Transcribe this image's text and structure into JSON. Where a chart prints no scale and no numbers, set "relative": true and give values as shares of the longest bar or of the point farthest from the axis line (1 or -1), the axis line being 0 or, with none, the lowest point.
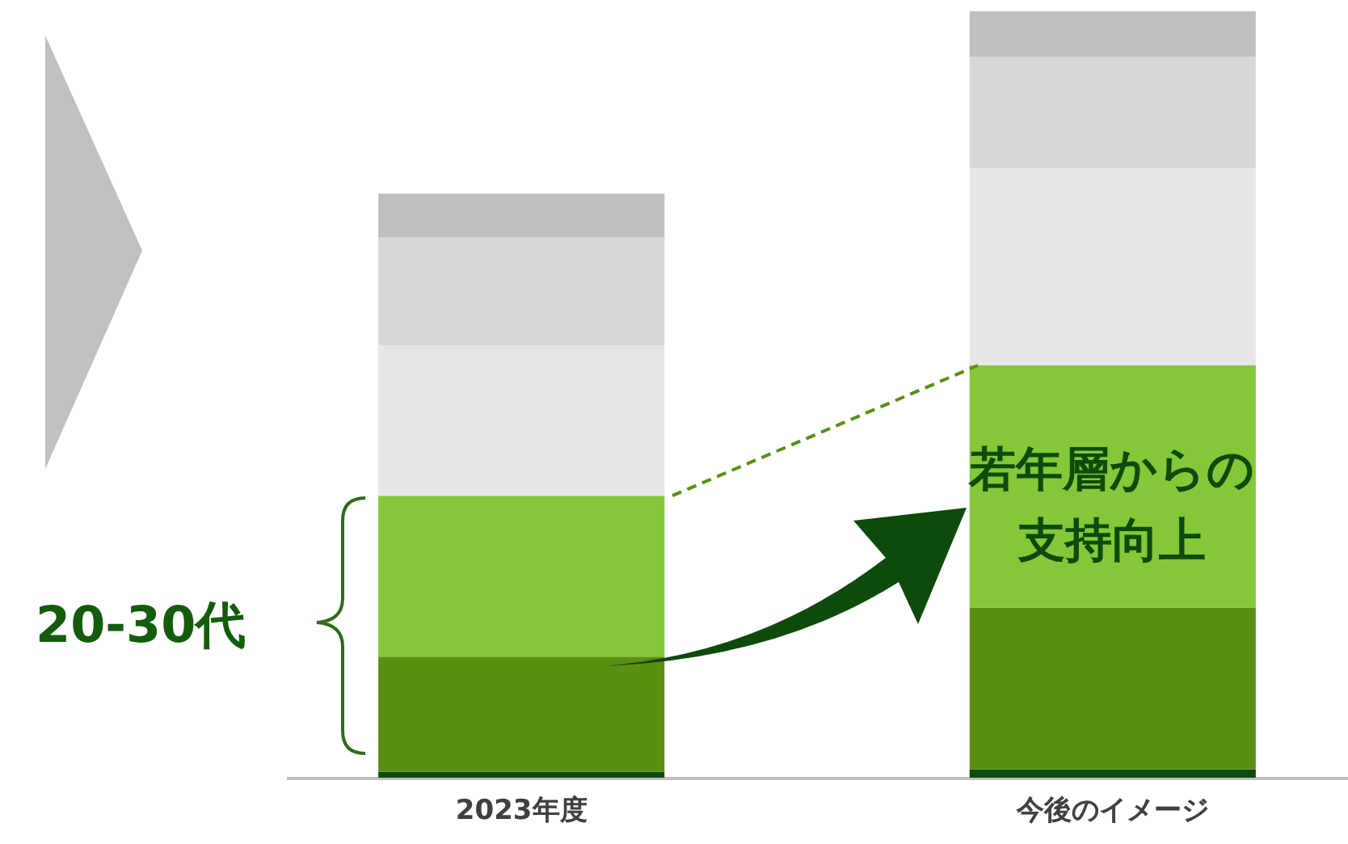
{
  "chart_data": {
    "type": "bar",
    "stacked": true,
    "relative": true,
    "categories": [
      "2023年度",
      "今後のイメージ"
    ],
    "series": [
      {
        "color": "#0e4a0a",
        "values": [
          0.008,
          0.011
        ]
      },
      {
        "color": "#5b8f12",
        "values": [
          0.15,
          0.211
        ]
      },
      {
        "color": "#84c738",
        "values": [
          0.21,
          0.316
        ]
      },
      {
        "color": "#e6e6e6",
        "values": [
          0.196,
          0.257
        ]
      },
      {
        "color": "#d8d8d8",
        "values": [
          0.141,
          0.146
        ]
      },
      {
        "color": "#bfbfbf",
        "values": [
          0.057,
          0.059
        ]
      }
    ],
    "annotations": [
      "20-30代",
      "若年層からの支持向上"
    ]
  }
}
